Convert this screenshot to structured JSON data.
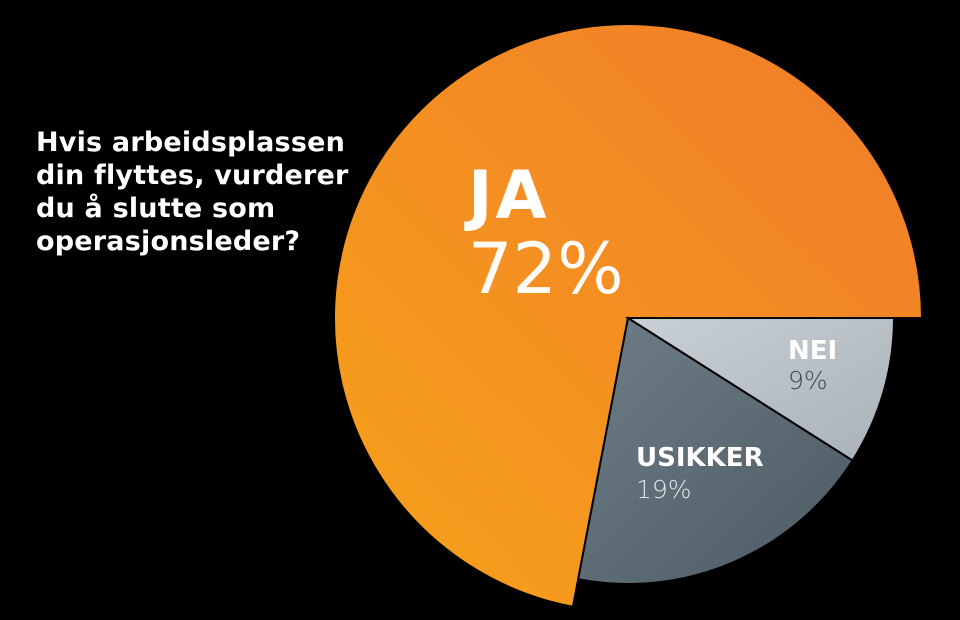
{
  "question_lines": [
    "Hvis arbeidsplassen",
    "din flyttes, vurderer",
    "du å slutte som",
    "operasjonsleder?"
  ],
  "chart_data": {
    "type": "pie",
    "title": "Hvis arbeidsplassen din flyttes, vurderer du å slutte som operasjonsleder?",
    "slices": [
      {
        "label": "JA",
        "value": 72,
        "value_label": "72%",
        "color": "#f7941d"
      },
      {
        "label": "NEI",
        "value": 9,
        "value_label": "9%",
        "color": "#b5bdc3"
      },
      {
        "label": "USIKKER",
        "value": 19,
        "value_label": "19%",
        "color": "#5d6c76"
      }
    ]
  }
}
